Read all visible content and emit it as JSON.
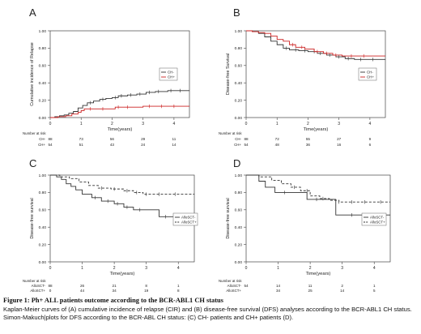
{
  "chart_data": [
    {
      "panel": "A",
      "type": "line",
      "subtype": "cumulative-incidence-step",
      "ylabel": "Cumulative incidence of Relapse",
      "xlabel": "Time(years)",
      "ylim": [
        0,
        1
      ],
      "xlim": [
        0,
        4.5
      ],
      "yticks": [
        "0.00",
        "0.20",
        "0.40",
        "0.60",
        "0.80",
        "1.00"
      ],
      "xticks": [
        "0",
        "1",
        "2",
        "3",
        "4"
      ],
      "grid": false,
      "legend": "right",
      "series": [
        {
          "name": "CH-",
          "color": "#333333",
          "dash": false,
          "points": [
            [
              0,
              0
            ],
            [
              0.15,
              0.01
            ],
            [
              0.3,
              0.02
            ],
            [
              0.45,
              0.03
            ],
            [
              0.6,
              0.05
            ],
            [
              0.75,
              0.07
            ],
            [
              0.9,
              0.11
            ],
            [
              1.05,
              0.14
            ],
            [
              1.2,
              0.17
            ],
            [
              1.4,
              0.19
            ],
            [
              1.6,
              0.21
            ],
            [
              1.8,
              0.22
            ],
            [
              2.0,
              0.23
            ],
            [
              2.2,
              0.25
            ],
            [
              2.5,
              0.26
            ],
            [
              2.8,
              0.27
            ],
            [
              3.1,
              0.29
            ],
            [
              3.4,
              0.3
            ],
            [
              3.8,
              0.31
            ],
            [
              4.5,
              0.31
            ]
          ],
          "censor_x": [
            1.3,
            1.7,
            2.1,
            2.3,
            2.6,
            2.9,
            3.2,
            3.5,
            3.9,
            4.2
          ]
        },
        {
          "name": "CH+",
          "color": "#cc2222",
          "dash": false,
          "points": [
            [
              0,
              0
            ],
            [
              0.25,
              0.01
            ],
            [
              0.5,
              0.02
            ],
            [
              0.7,
              0.04
            ],
            [
              0.9,
              0.06
            ],
            [
              1.0,
              0.08
            ],
            [
              1.1,
              0.1
            ],
            [
              1.4,
              0.1
            ],
            [
              2.0,
              0.1
            ],
            [
              2.1,
              0.12
            ],
            [
              2.8,
              0.12
            ],
            [
              3.0,
              0.13
            ],
            [
              4.5,
              0.13
            ]
          ],
          "censor_x": [
            1.3,
            1.7,
            2.2,
            2.5,
            3.2,
            3.6,
            4.0
          ]
        }
      ],
      "risk_table": {
        "title": "Number at risk",
        "rows": [
          {
            "label": "CH-",
            "values": [
              "88",
              "73",
              "56",
              "29",
              "11"
            ]
          },
          {
            "label": "CH+",
            "values": [
              "54",
              "51",
              "43",
              "24",
              "14"
            ]
          }
        ]
      }
    },
    {
      "panel": "B",
      "type": "line",
      "subtype": "survival-step",
      "ylabel": "Disease-free Survival",
      "xlabel": "Time(years)",
      "ylim": [
        0,
        1
      ],
      "xlim": [
        0,
        4.5
      ],
      "yticks": [
        "0.00",
        "0.20",
        "0.40",
        "0.60",
        "0.80",
        "1.00"
      ],
      "xticks": [
        "0",
        "1",
        "2",
        "3",
        "4"
      ],
      "grid": false,
      "legend": "right",
      "series": [
        {
          "name": "CH-",
          "color": "#333333",
          "dash": false,
          "points": [
            [
              0,
              1.0
            ],
            [
              0.2,
              0.99
            ],
            [
              0.4,
              0.97
            ],
            [
              0.6,
              0.93
            ],
            [
              0.8,
              0.88
            ],
            [
              1.0,
              0.84
            ],
            [
              1.2,
              0.8
            ],
            [
              1.4,
              0.78
            ],
            [
              1.7,
              0.77
            ],
            [
              2.0,
              0.76
            ],
            [
              2.3,
              0.74
            ],
            [
              2.6,
              0.72
            ],
            [
              2.9,
              0.7
            ],
            [
              3.2,
              0.68
            ],
            [
              3.5,
              0.67
            ],
            [
              4.5,
              0.67
            ]
          ],
          "censor_x": [
            1.3,
            1.6,
            1.9,
            2.2,
            2.4,
            2.7,
            3.0,
            3.3,
            3.7,
            4.1
          ]
        },
        {
          "name": "CH+",
          "color": "#cc2222",
          "dash": false,
          "points": [
            [
              0,
              1.0
            ],
            [
              0.2,
              0.99
            ],
            [
              0.4,
              0.98
            ],
            [
              0.6,
              0.97
            ],
            [
              0.8,
              0.94
            ],
            [
              1.0,
              0.9
            ],
            [
              1.2,
              0.88
            ],
            [
              1.4,
              0.84
            ],
            [
              1.6,
              0.81
            ],
            [
              1.9,
              0.79
            ],
            [
              2.2,
              0.76
            ],
            [
              2.5,
              0.74
            ],
            [
              2.8,
              0.72
            ],
            [
              3.1,
              0.71
            ],
            [
              4.5,
              0.71
            ]
          ],
          "censor_x": [
            1.5,
            1.8,
            2.3,
            2.6,
            2.9,
            3.4,
            3.8
          ]
        }
      ],
      "risk_table": {
        "title": "Number at risk",
        "rows": [
          {
            "label": "CH-",
            "values": [
              "88",
              "72",
              "55",
              "27",
              "9"
            ]
          },
          {
            "label": "CH+",
            "values": [
              "54",
              "48",
              "36",
              "16",
              "6"
            ]
          }
        ]
      }
    },
    {
      "panel": "C",
      "type": "line",
      "subtype": "survival-step",
      "ylabel": "Disease-free survival",
      "xlabel": "Time(years)",
      "ylim": [
        0,
        1
      ],
      "xlim": [
        0,
        4.5
      ],
      "yticks": [
        "0.00",
        "0.20",
        "0.40",
        "0.60",
        "0.80",
        "1.00"
      ],
      "xticks": [
        "0",
        "1",
        "2",
        "3",
        "4"
      ],
      "grid": false,
      "legend": "right",
      "series": [
        {
          "name": "AlloSCT-",
          "color": "#333333",
          "dash": false,
          "points": [
            [
              0,
              1.0
            ],
            [
              0.2,
              0.98
            ],
            [
              0.35,
              0.95
            ],
            [
              0.5,
              0.9
            ],
            [
              0.65,
              0.87
            ],
            [
              0.8,
              0.83
            ],
            [
              1.0,
              0.78
            ],
            [
              1.3,
              0.74
            ],
            [
              1.6,
              0.7
            ],
            [
              2.0,
              0.67
            ],
            [
              2.3,
              0.63
            ],
            [
              2.6,
              0.6
            ],
            [
              3.0,
              0.6
            ],
            [
              3.4,
              0.52
            ],
            [
              4.5,
              0.52
            ]
          ],
          "censor_x": [
            1.4,
            1.8,
            2.1,
            2.4,
            2.8,
            3.6,
            4.0
          ]
        },
        {
          "name": "AlloSCT+",
          "color": "#333333",
          "dash": true,
          "points": [
            [
              0,
              1.0
            ],
            [
              0.3,
              0.98
            ],
            [
              0.6,
              0.96
            ],
            [
              0.9,
              0.92
            ],
            [
              1.2,
              0.88
            ],
            [
              1.5,
              0.85
            ],
            [
              1.9,
              0.84
            ],
            [
              2.3,
              0.82
            ],
            [
              2.6,
              0.8
            ],
            [
              2.9,
              0.78
            ],
            [
              4.5,
              0.78
            ]
          ],
          "censor_x": [
            1.6,
            2.0,
            2.4,
            2.7,
            3.0,
            3.4,
            3.9
          ]
        }
      ],
      "risk_table": {
        "title": "Number at risk",
        "rows": [
          {
            "label": "AlloSCT-",
            "values": [
              "88",
              "26",
              "21",
              "8",
              "1"
            ]
          },
          {
            "label": "AlloSCT+",
            "values": [
              "0",
              "44",
              "34",
              "19",
              "8"
            ]
          }
        ]
      }
    },
    {
      "panel": "D",
      "type": "line",
      "subtype": "survival-step",
      "ylabel": "Disease-free survival",
      "xlabel": "Time(years)",
      "ylim": [
        0,
        1
      ],
      "xlim": [
        0,
        4.5
      ],
      "yticks": [
        "0.00",
        "0.20",
        "0.40",
        "0.60",
        "0.80",
        "1.00"
      ],
      "xticks": [
        "0",
        "1",
        "2",
        "3",
        "4"
      ],
      "grid": false,
      "legend": "right",
      "series": [
        {
          "name": "AlloSCT-",
          "color": "#333333",
          "dash": false,
          "points": [
            [
              0,
              1.0
            ],
            [
              0.3,
              1.0
            ],
            [
              0.4,
              0.93
            ],
            [
              0.6,
              0.86
            ],
            [
              0.9,
              0.8
            ],
            [
              1.6,
              0.8
            ],
            [
              1.9,
              0.72
            ],
            [
              2.7,
              0.72
            ],
            [
              2.8,
              0.54
            ],
            [
              4.5,
              0.54
            ]
          ],
          "censor_x": [
            1.2,
            2.2,
            3.3,
            4.1
          ]
        },
        {
          "name": "AlloSCT+",
          "color": "#333333",
          "dash": true,
          "points": [
            [
              0,
              1.0
            ],
            [
              0.4,
              0.98
            ],
            [
              0.8,
              0.94
            ],
            [
              1.1,
              0.9
            ],
            [
              1.4,
              0.86
            ],
            [
              1.7,
              0.82
            ],
            [
              2.0,
              0.76
            ],
            [
              2.3,
              0.73
            ],
            [
              2.6,
              0.71
            ],
            [
              2.9,
              0.69
            ],
            [
              4.5,
              0.69
            ]
          ],
          "censor_x": [
            1.5,
            1.9,
            2.4,
            2.9,
            3.3,
            3.7,
            4.2
          ]
        }
      ],
      "risk_table": {
        "title": "Number at risk",
        "rows": [
          {
            "label": "AlloSCT-",
            "values": [
              "54",
              "14",
              "11",
              "2",
              "1"
            ]
          },
          {
            "label": "AlloSCT+",
            "values": [
              "",
              "34",
              "25",
              "14",
              "5"
            ]
          }
        ]
      }
    }
  ],
  "caption": {
    "title": "Figure 1: Ph+ ALL patients outcome according to the BCR-ABL1 CH status",
    "body": "Kaplan-Meier curves of (A) cumulative incidence of relapse (CIR) and (B) disease-free survival (DFS) analyses according to the BCR-ABL1 CH status. Simon-Makuch|plots for DFS according to the BCR-ABL CH status: (C) CH- patients and CH+ patients (D)."
  }
}
